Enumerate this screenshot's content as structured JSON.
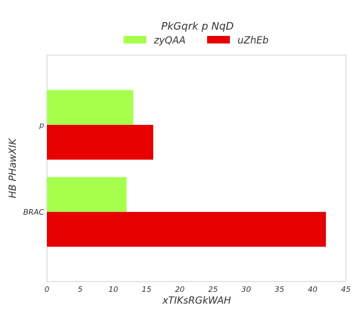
{
  "chart_data": {
    "type": "bar",
    "orientation": "horizontal",
    "categories": [
      "p",
      "BRAC"
    ],
    "series": [
      {
        "name": "zyQAA",
        "values": [
          13,
          12
        ],
        "color": "#a6ff4d"
      },
      {
        "name": "uZhEb",
        "values": [
          16,
          42
        ],
        "color": "#e60000"
      }
    ],
    "xlabel": "xTIKsRGkWAH",
    "ylabel": "HB PHawXIK",
    "xlim": [
      0,
      45
    ],
    "xticks": [
      0,
      5,
      10,
      15,
      20,
      25,
      30,
      35,
      40,
      45
    ],
    "legend": {
      "title": "PkGqrk p  NqD",
      "placement": "top-center"
    },
    "grid": false
  }
}
